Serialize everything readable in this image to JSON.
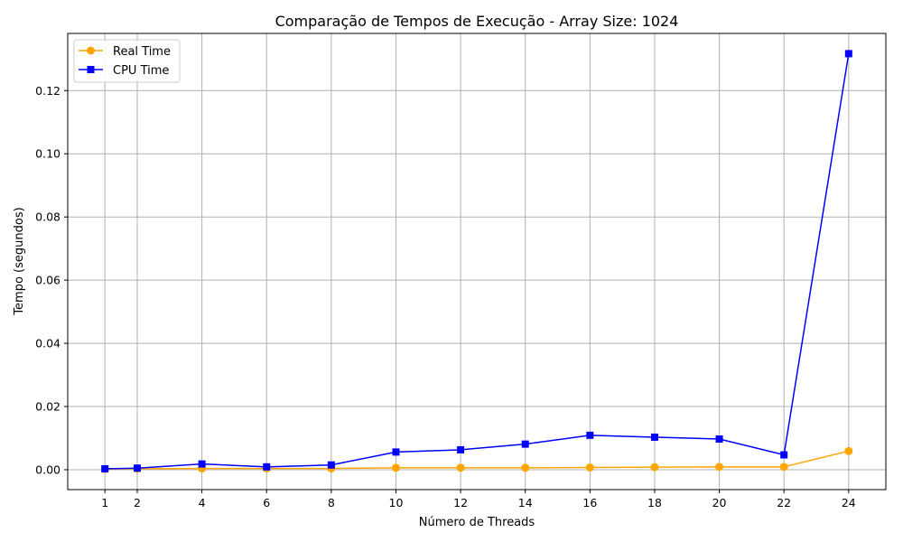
{
  "chart_data": {
    "type": "line",
    "title": "Comparação de Tempos de Execução - Array Size: 1024",
    "xlabel": "Número de Threads",
    "ylabel": "Tempo (segundos)",
    "x": [
      1,
      2,
      4,
      6,
      8,
      10,
      12,
      14,
      16,
      18,
      20,
      22,
      24
    ],
    "xticks": [
      1,
      2,
      4,
      6,
      8,
      10,
      12,
      14,
      16,
      18,
      20,
      22,
      24
    ],
    "yticks": [
      0.0,
      0.02,
      0.04,
      0.06,
      0.08,
      0.1,
      0.12
    ],
    "ytick_labels": [
      "0.00",
      "0.02",
      "0.04",
      "0.06",
      "0.08",
      "0.10",
      "0.12"
    ],
    "xlim": [
      -0.15,
      25.15
    ],
    "ylim": [
      -0.0063,
      0.1381
    ],
    "grid": true,
    "legend_position": "upper left",
    "series": [
      {
        "name": "Real Time",
        "color": "#ffa500",
        "marker": "circle",
        "values": [
          0.0002,
          0.0003,
          0.0004,
          0.0004,
          0.0004,
          0.0006,
          0.0006,
          0.0006,
          0.0007,
          0.0008,
          0.0009,
          0.0009,
          0.0059
        ]
      },
      {
        "name": "CPU Time",
        "color": "#0000ff",
        "marker": "square",
        "values": [
          0.0003,
          0.0005,
          0.0018,
          0.0009,
          0.0015,
          0.0056,
          0.0063,
          0.0081,
          0.0109,
          0.0103,
          0.0097,
          0.0047,
          0.1317
        ]
      }
    ]
  }
}
